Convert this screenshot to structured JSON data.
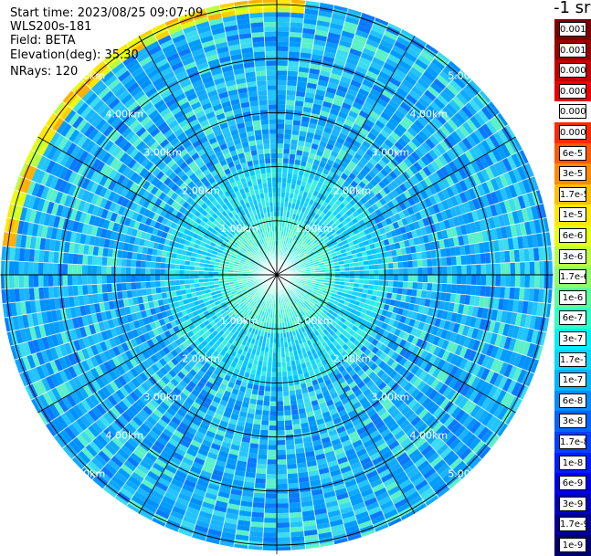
{
  "info": {
    "start_time": "Start time: 2023/08/25 09:07:09",
    "instrument": "WLS200s-181",
    "field": "Field: BETA",
    "elevation": "Elevation(deg): 35.30",
    "nrays": "NRays: 120"
  },
  "colorbar": {
    "title": "-1 sr",
    "labels": [
      "0.0017",
      "0.001",
      "0.0006",
      "0.0003",
      "0.00017",
      "0.0001",
      "6e-5",
      "3e-5",
      "1.7e-5",
      "1e-5",
      "6e-6",
      "3e-6",
      "1.7e-6",
      "1e-6",
      "6e-7",
      "3e-7",
      "1.7e-7",
      "1e-7",
      "6e-8",
      "3e-8",
      "1.7e-8",
      "1e-8",
      "6e-9",
      "3e-9",
      "1.7e-9",
      "1e-9"
    ],
    "colors": [
      "#7f0000",
      "#9c0000",
      "#c40000",
      "#ee0000",
      "#ffffff",
      "#ff2a00",
      "#ff5a00",
      "#ff8c00",
      "#ffbf00",
      "#ffe800",
      "#e6ff12",
      "#b8ff40",
      "#8cff6b",
      "#5cff9c",
      "#2fffc8",
      "#00f0f8",
      "#00d8ff",
      "#00b4ff",
      "#008cff",
      "#0064ff",
      "#0040ff",
      "#001cff",
      "#0000e8",
      "#0000c0",
      "#000098",
      "#00006e"
    ]
  },
  "chart_data": {
    "type": "polar-scan",
    "title": "-1 sr",
    "rays": 120,
    "range_rings_km": [
      1,
      2,
      3,
      4,
      5
    ],
    "range_ring_labels": [
      "1.00km",
      "2.00km",
      "3.00km",
      "4.00km",
      "5.00km"
    ],
    "max_range_km": 5.1,
    "radial_spokes_deg": [
      0,
      30,
      60,
      90,
      120,
      150,
      180,
      210,
      240,
      270,
      300,
      330
    ],
    "colormap": "jet",
    "value_scale": "log",
    "value_range": [
      1e-09,
      0.0017
    ],
    "dominant_values": {
      "center_0_to_1km": "1.7e-7",
      "ring_1_to_2km": "1e-7",
      "outer_2_to_5km": "6e-8"
    }
  }
}
